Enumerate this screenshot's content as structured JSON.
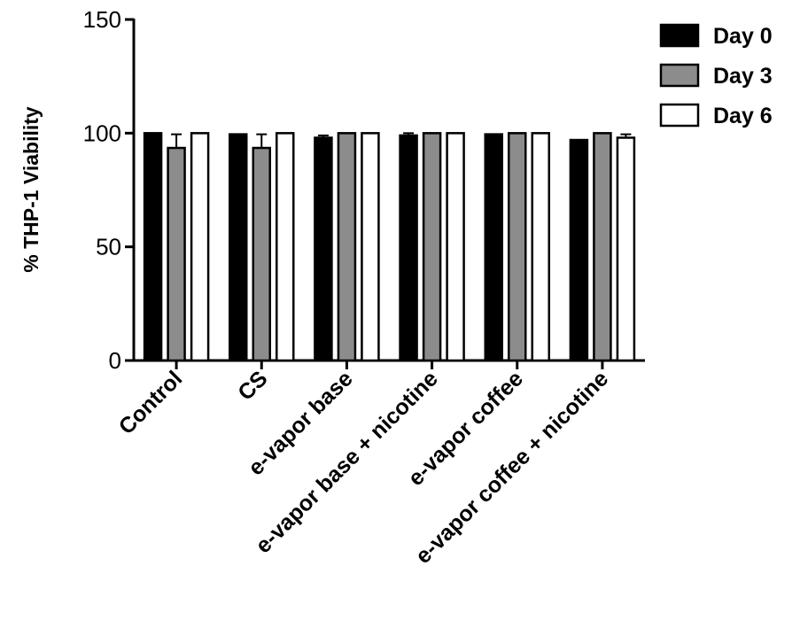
{
  "chart_data": {
    "type": "bar",
    "title": "",
    "xlabel": "",
    "ylabel": "% THP-1 Viability",
    "ylim": [
      0,
      150
    ],
    "yticks": [
      0,
      50,
      100,
      150
    ],
    "grid": false,
    "legend_position": "top-right",
    "categories": [
      "Control",
      "CS",
      "e-vapor base",
      "e-vapor base + nicotine",
      "e-vapor coffee",
      "e-vapor coffee + nicotine"
    ],
    "series": [
      {
        "name": "Day 0",
        "color": "#000000",
        "values": [
          100,
          99.5,
          98,
          99,
          99.5,
          97
        ],
        "errors": [
          0.5,
          0.5,
          1,
          1,
          0.5,
          0.5
        ]
      },
      {
        "name": "Day 3",
        "color": "#8c8c8c",
        "values": [
          93.5,
          93.5,
          100,
          100,
          100,
          100
        ],
        "errors": [
          6,
          6,
          0.5,
          0.5,
          0.5,
          0.5
        ]
      },
      {
        "name": "Day 6",
        "color": "#ffffff",
        "values": [
          100,
          100,
          100,
          100,
          100,
          98
        ],
        "errors": [
          0.3,
          0.3,
          0.3,
          0.3,
          0.3,
          1.5
        ]
      }
    ]
  }
}
